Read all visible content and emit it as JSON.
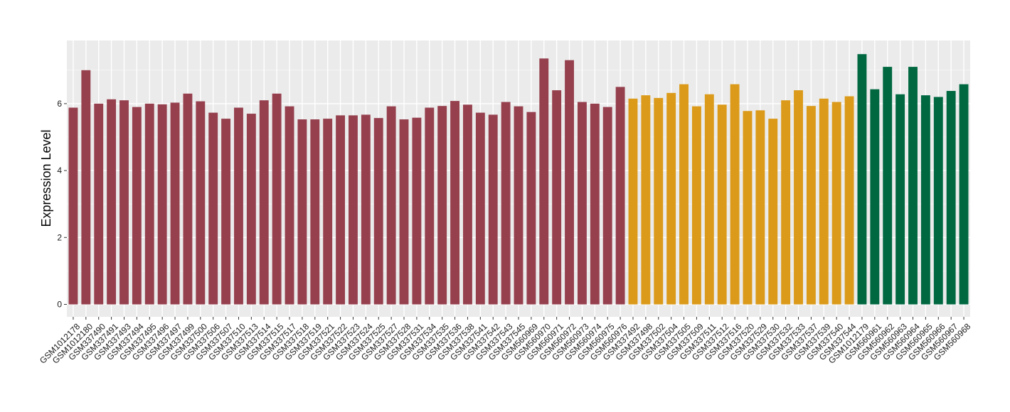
{
  "chart_data": {
    "type": "bar",
    "title": "",
    "xlabel": "",
    "ylabel": "Expression Level",
    "ylim": [
      0,
      7.8
    ],
    "yticks": [
      0,
      2,
      4,
      6
    ],
    "grid": true,
    "legend": "none",
    "group_colors": [
      "#96404E",
      "#DB9A1A",
      "#006841"
    ],
    "categories": [
      "GSM1012178",
      "GSM1012180",
      "GSM337490",
      "GSM337491",
      "GSM337493",
      "GSM337494",
      "GSM337495",
      "GSM337496",
      "GSM337497",
      "GSM337499",
      "GSM337500",
      "GSM337506",
      "GSM337507",
      "GSM337510",
      "GSM337513",
      "GSM337514",
      "GSM337515",
      "GSM337517",
      "GSM337518",
      "GSM337519",
      "GSM337521",
      "GSM337522",
      "GSM337523",
      "GSM337524",
      "GSM337525",
      "GSM337527",
      "GSM337528",
      "GSM337531",
      "GSM337534",
      "GSM337535",
      "GSM337536",
      "GSM337538",
      "GSM337541",
      "GSM337542",
      "GSM337543",
      "GSM337545",
      "GSM560969",
      "GSM560970",
      "GSM560971",
      "GSM560972",
      "GSM560973",
      "GSM560974",
      "GSM560975",
      "GSM560976",
      "GSM337492",
      "GSM337498",
      "GSM337502",
      "GSM337504",
      "GSM337505",
      "GSM337509",
      "GSM337511",
      "GSM337512",
      "GSM337516",
      "GSM337520",
      "GSM337529",
      "GSM337530",
      "GSM337532",
      "GSM337533",
      "GSM337537",
      "GSM337539",
      "GSM337540",
      "GSM337544",
      "GSM1012179",
      "GSM560961",
      "GSM560962",
      "GSM560963",
      "GSM560964",
      "GSM560965",
      "GSM560966",
      "GSM560967",
      "GSM560968"
    ],
    "values": [
      5.88,
      7.0,
      6.0,
      6.13,
      6.1,
      5.9,
      6.0,
      5.98,
      6.03,
      6.3,
      6.07,
      5.73,
      5.55,
      5.88,
      5.7,
      6.1,
      6.3,
      5.92,
      5.53,
      5.53,
      5.55,
      5.65,
      5.65,
      5.67,
      5.57,
      5.92,
      5.53,
      5.58,
      5.88,
      5.93,
      6.08,
      5.97,
      5.73,
      5.67,
      6.05,
      5.92,
      5.75,
      7.35,
      6.4,
      7.3,
      6.05,
      6.0,
      5.9,
      6.5,
      6.15,
      6.25,
      6.17,
      6.32,
      6.58,
      5.92,
      6.28,
      5.97,
      6.58,
      5.78,
      5.8,
      5.55,
      6.1,
      6.4,
      5.93,
      6.15,
      6.05,
      6.22,
      7.48,
      6.43,
      7.1,
      6.28,
      7.1,
      6.25,
      6.2,
      6.38,
      6.58
    ],
    "groups": [
      0,
      0,
      0,
      0,
      0,
      0,
      0,
      0,
      0,
      0,
      0,
      0,
      0,
      0,
      0,
      0,
      0,
      0,
      0,
      0,
      0,
      0,
      0,
      0,
      0,
      0,
      0,
      0,
      0,
      0,
      0,
      0,
      0,
      0,
      0,
      0,
      0,
      0,
      0,
      0,
      0,
      0,
      0,
      0,
      1,
      1,
      1,
      1,
      1,
      1,
      1,
      1,
      1,
      1,
      1,
      1,
      1,
      1,
      1,
      1,
      1,
      1,
      2,
      2,
      2,
      2,
      2,
      2,
      2,
      2,
      2
    ]
  }
}
